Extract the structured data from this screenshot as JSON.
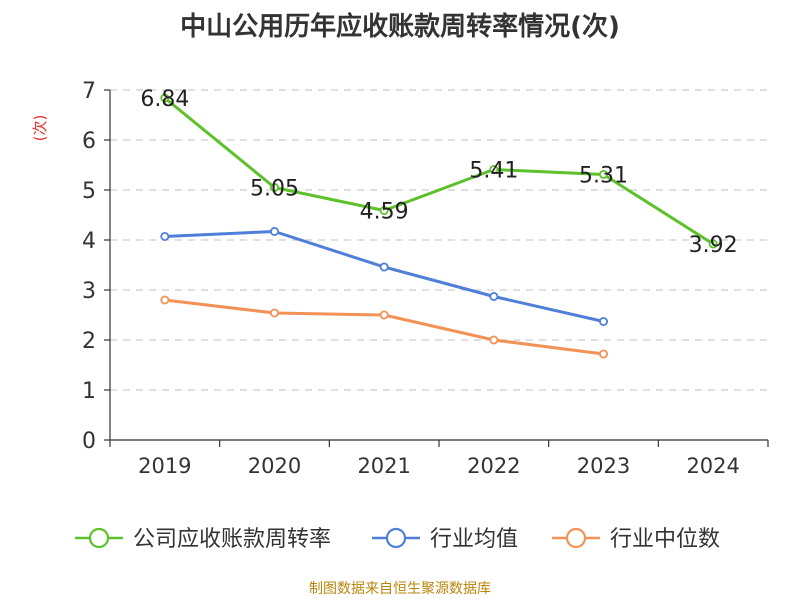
{
  "chart_data": {
    "type": "line",
    "title": "中山公用历年应收账款周转率情况(次)",
    "ylabel": "(次)",
    "xlabel": "",
    "categories": [
      "2019",
      "2020",
      "2021",
      "2022",
      "2023",
      "2024"
    ],
    "ylim": [
      0,
      7
    ],
    "yticks": [
      0,
      1,
      2,
      3,
      4,
      5,
      6,
      7
    ],
    "grid": true,
    "legend_position": "bottom",
    "series": [
      {
        "name": "公司应收账款周转率",
        "color": "#5cc12a",
        "values": [
          6.84,
          5.05,
          4.59,
          5.41,
          5.31,
          3.92
        ],
        "show_labels": true
      },
      {
        "name": "行业均值",
        "color": "#4f7fd9",
        "values": [
          4.07,
          4.17,
          3.46,
          2.87,
          2.37,
          null
        ],
        "show_labels": false
      },
      {
        "name": "行业中位数",
        "color": "#f39256",
        "values": [
          2.8,
          2.54,
          2.5,
          2.0,
          1.72,
          null
        ],
        "show_labels": false
      }
    ]
  },
  "source": "制图数据来自恒生聚源数据库"
}
